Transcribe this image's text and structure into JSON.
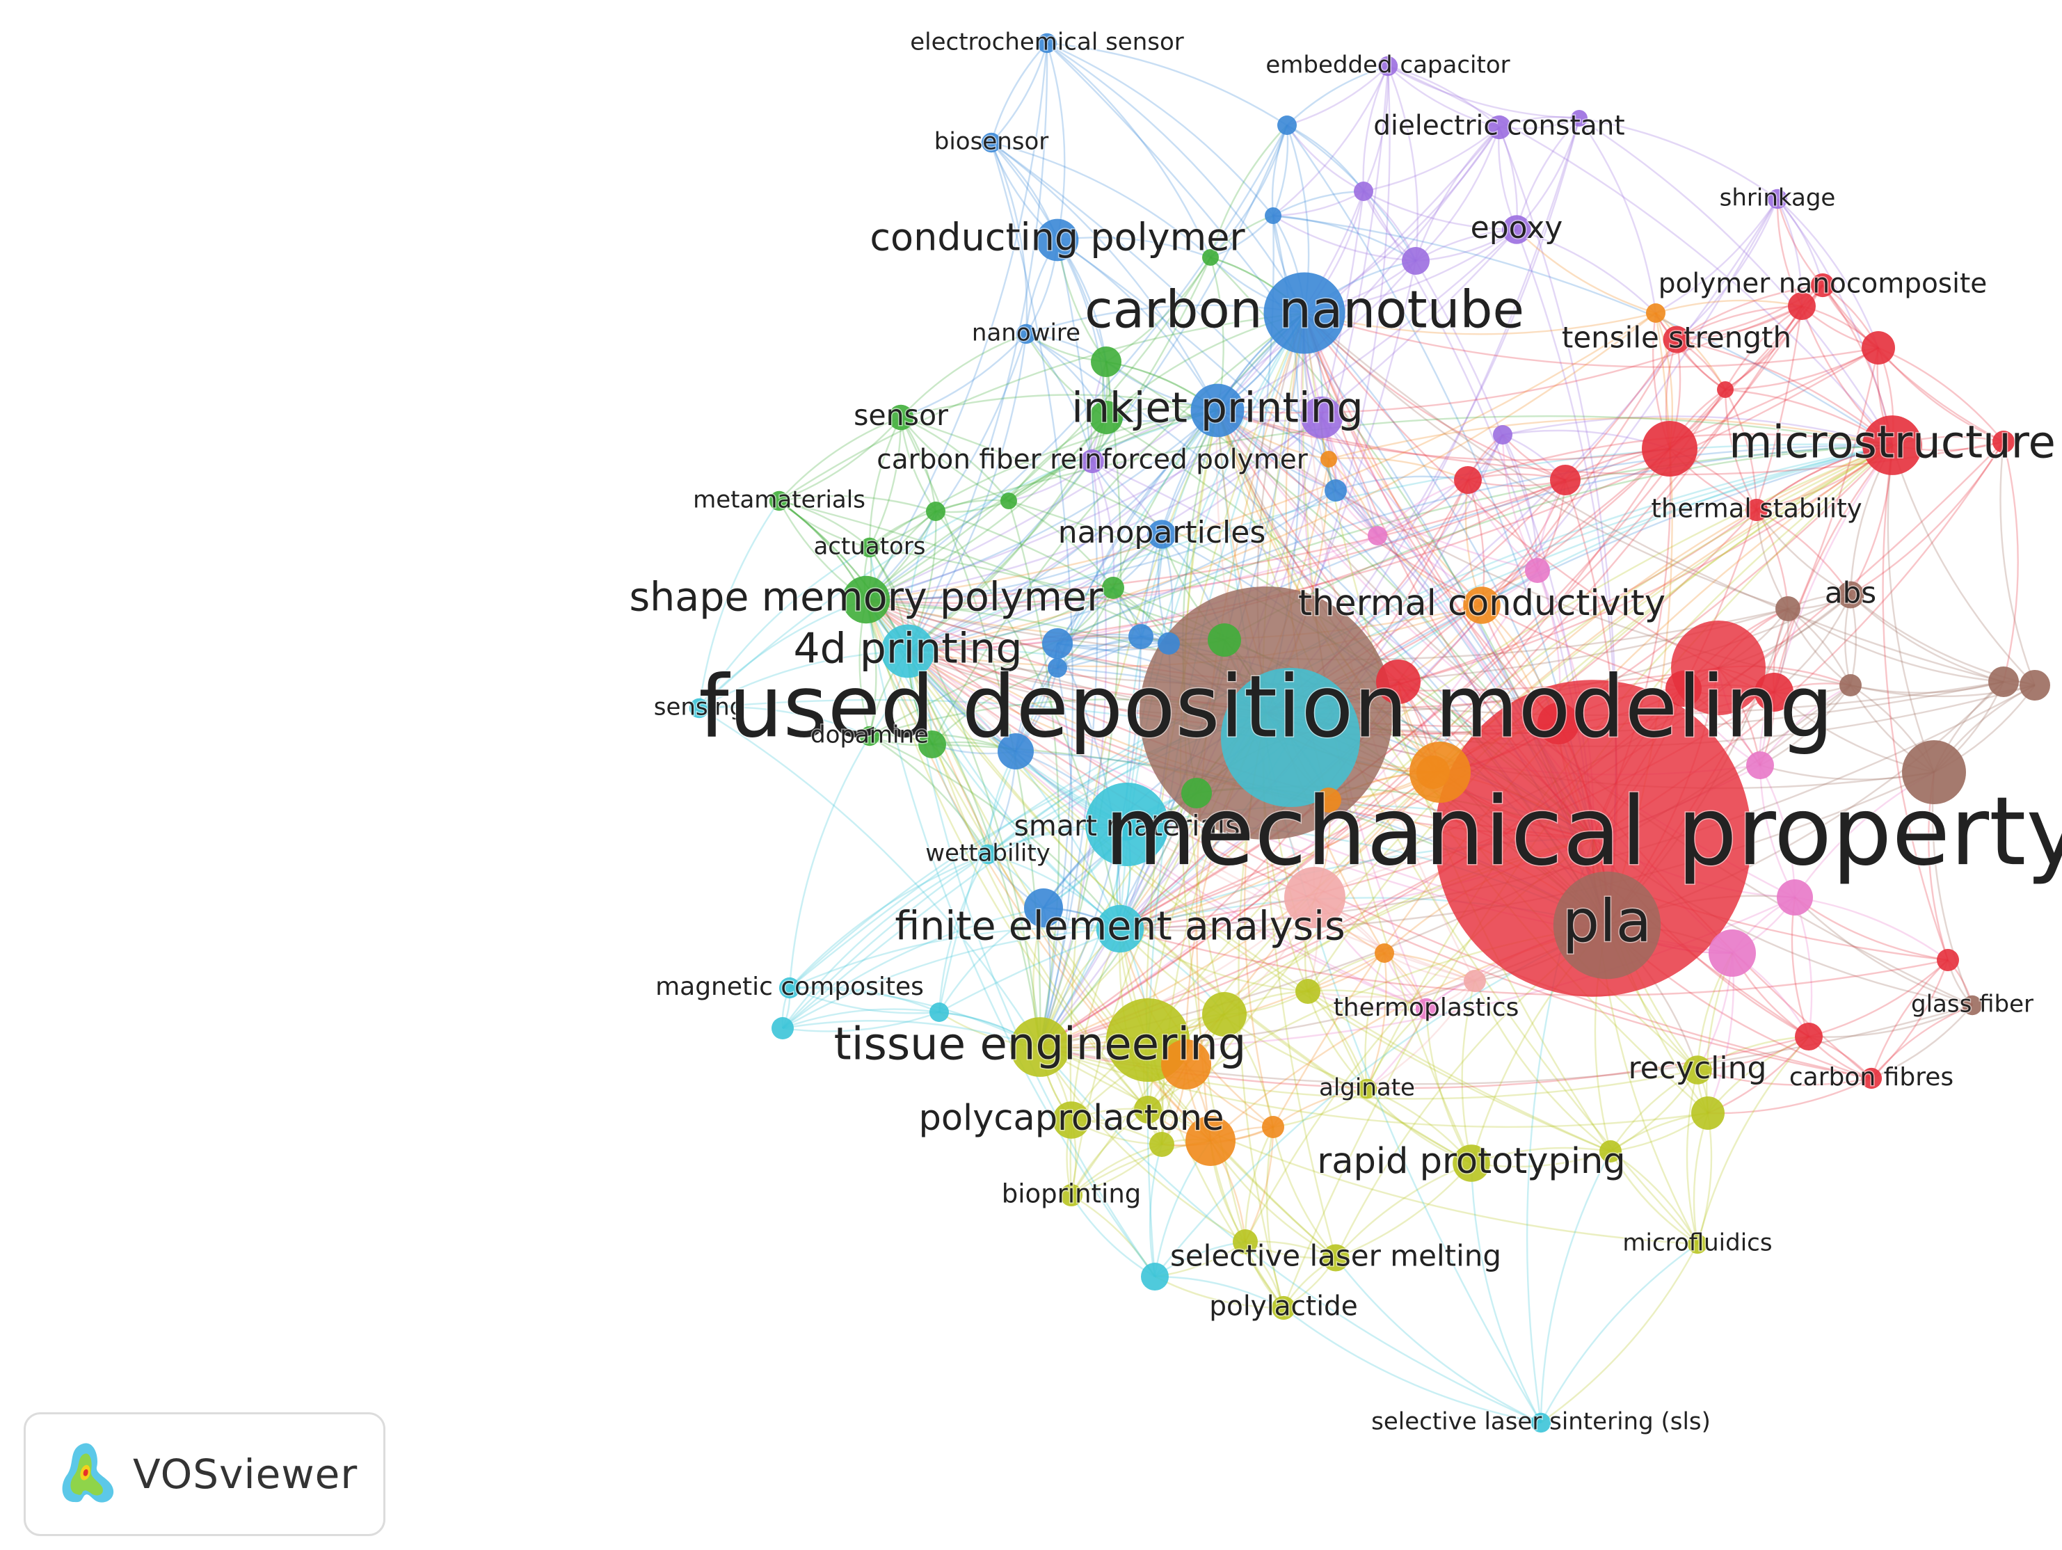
{
  "app": {
    "brand": "VOSviewer"
  },
  "clusters": {
    "red": "#e6303c",
    "green": "#3fae3a",
    "blue": "#3a87d6",
    "yellow": "#b8c420",
    "purple": "#9b6ee0",
    "cyan": "#3cc4d8",
    "orange": "#f08a1c",
    "brown": "#9b6b5e",
    "pink": "#e878c8",
    "lightpink": "#f2a8a8"
  },
  "keywords": [
    {
      "label": "electrochemical sensor",
      "cluster": "blue",
      "weight": 1
    },
    {
      "label": "embedded capacitor",
      "cluster": "purple",
      "weight": 1
    },
    {
      "label": "biosensor",
      "cluster": "blue",
      "weight": 1
    },
    {
      "label": "dielectric constant",
      "cluster": "purple",
      "weight": 1.3
    },
    {
      "label": "shrinkage",
      "cluster": "purple",
      "weight": 1
    },
    {
      "label": "conducting polymer",
      "cluster": "blue",
      "weight": 2.2
    },
    {
      "label": "epoxy",
      "cluster": "purple",
      "weight": 1.6
    },
    {
      "label": "polymer nanocomposite",
      "cluster": "red",
      "weight": 1.3
    },
    {
      "label": "carbon nanotube",
      "cluster": "blue",
      "weight": 3.4
    },
    {
      "label": "nanowire",
      "cluster": "blue",
      "weight": 1
    },
    {
      "label": "tensile strength",
      "cluster": "red",
      "weight": 1.5
    },
    {
      "label": "sensor",
      "cluster": "green",
      "weight": 1.4
    },
    {
      "label": "inkjet printing",
      "cluster": "blue",
      "weight": 2.6
    },
    {
      "label": "microstructure",
      "cluster": "red",
      "weight": 2.8
    },
    {
      "label": "carbon fiber reinforced polymer",
      "cluster": "purple",
      "weight": 1.3
    },
    {
      "label": "metamaterials",
      "cluster": "green",
      "weight": 1
    },
    {
      "label": "thermal stability",
      "cluster": "red",
      "weight": 1.2
    },
    {
      "label": "actuators",
      "cluster": "green",
      "weight": 1
    },
    {
      "label": "nanoparticles",
      "cluster": "blue",
      "weight": 1.6
    },
    {
      "label": "abs",
      "cluster": "brown",
      "weight": 1.5
    },
    {
      "label": "shape memory polymer",
      "cluster": "green",
      "weight": 2.4
    },
    {
      "label": "thermal conductivity",
      "cluster": "orange",
      "weight": 2
    },
    {
      "label": "4d printing",
      "cluster": "cyan",
      "weight": 2.6
    },
    {
      "label": "sensing",
      "cluster": "cyan",
      "weight": 1
    },
    {
      "label": "fused deposition modeling",
      "cluster": "brown",
      "weight": 6.4
    },
    {
      "label": "dopamine",
      "cluster": "green",
      "weight": 1
    },
    {
      "label": "smart materials",
      "cluster": "cyan",
      "weight": 1.4
    },
    {
      "label": "mechanical property",
      "cluster": "red",
      "weight": 7.2
    },
    {
      "label": "wettability",
      "cluster": "cyan",
      "weight": 1
    },
    {
      "label": "pla",
      "cluster": "brown",
      "weight": 4
    },
    {
      "label": "finite element analysis",
      "cluster": "cyan",
      "weight": 2.4
    },
    {
      "label": "magnetic composites",
      "cluster": "cyan",
      "weight": 1.1
    },
    {
      "label": "glass fiber",
      "cluster": "brown",
      "weight": 1
    },
    {
      "label": "thermoplastics",
      "cluster": "pink",
      "weight": 1.1
    },
    {
      "label": "tissue engineering",
      "cluster": "yellow",
      "weight": 2.8
    },
    {
      "label": "recycling",
      "cluster": "yellow",
      "weight": 1.6
    },
    {
      "label": "carbon fibres",
      "cluster": "red",
      "weight": 1.1
    },
    {
      "label": "alginate",
      "cluster": "yellow",
      "weight": 1
    },
    {
      "label": "polycaprolactone",
      "cluster": "yellow",
      "weight": 2
    },
    {
      "label": "rapid prototyping",
      "cluster": "yellow",
      "weight": 2
    },
    {
      "label": "bioprinting",
      "cluster": "yellow",
      "weight": 1.2
    },
    {
      "label": "microfluidics",
      "cluster": "yellow",
      "weight": 1
    },
    {
      "label": "selective laser melting",
      "cluster": "yellow",
      "weight": 1.5
    },
    {
      "label": "polylactide",
      "cluster": "yellow",
      "weight": 1.3
    },
    {
      "label": "selective laser sintering (sls)",
      "cluster": "cyan",
      "weight": 1
    }
  ]
}
